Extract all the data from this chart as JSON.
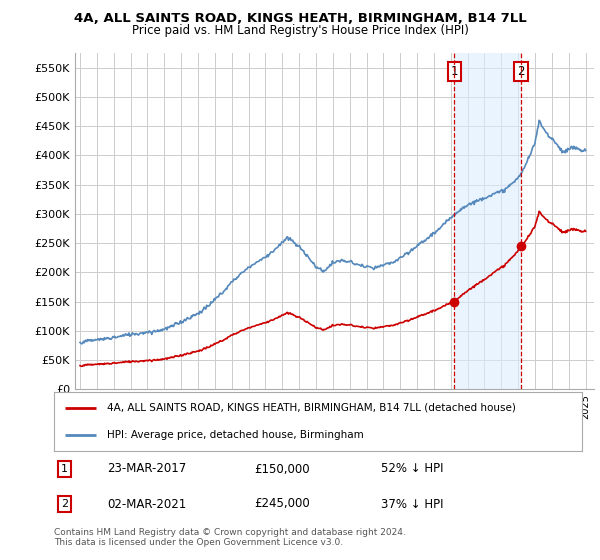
{
  "title1": "4A, ALL SAINTS ROAD, KINGS HEATH, BIRMINGHAM, B14 7LL",
  "title2": "Price paid vs. HM Land Registry's House Price Index (HPI)",
  "ylim": [
    0,
    575000
  ],
  "yticks": [
    0,
    50000,
    100000,
    150000,
    200000,
    250000,
    300000,
    350000,
    400000,
    450000,
    500000,
    550000
  ],
  "ytick_labels": [
    "£0",
    "£50K",
    "£100K",
    "£150K",
    "£200K",
    "£250K",
    "£300K",
    "£350K",
    "£400K",
    "£450K",
    "£500K",
    "£550K"
  ],
  "hpi_color": "#5588bb",
  "property_color": "#cc0000",
  "vline_color": "#cc0000",
  "marker1_year": 2017.22,
  "marker2_year": 2021.17,
  "marker1_value": 150000,
  "marker2_value": 245000,
  "legend_line1": "4A, ALL SAINTS ROAD, KINGS HEATH, BIRMINGHAM, B14 7LL (detached house)",
  "legend_line2": "HPI: Average price, detached house, Birmingham",
  "annot1_date": "23-MAR-2017",
  "annot1_price": "£150,000",
  "annot1_hpi": "52% ↓ HPI",
  "annot2_date": "02-MAR-2021",
  "annot2_price": "£245,000",
  "annot2_hpi": "37% ↓ HPI",
  "footer": "Contains HM Land Registry data © Crown copyright and database right 2024.\nThis data is licensed under the Open Government Licence v3.0.",
  "bg_color": "#ffffff",
  "grid_color": "#cccccc",
  "highlight_bg": "#ddeeff"
}
